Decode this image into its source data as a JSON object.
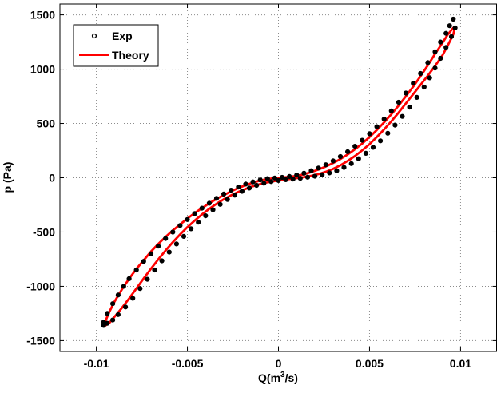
{
  "chart_data": {
    "type": "scatter",
    "xlabel_base": "Q(m",
    "xlabel_sup": "3",
    "xlabel_tail": "/s)",
    "ylabel": "p (Pa)",
    "xlim": [
      -0.012,
      0.012
    ],
    "ylim": [
      -1600,
      1600
    ],
    "grid": true,
    "legend_position": "top-left",
    "x_ticks": [
      -0.01,
      -0.005,
      0,
      0.005,
      0.01
    ],
    "x_tick_labels": [
      "-0.01",
      "-0.005",
      "0",
      "0.005",
      "0.01"
    ],
    "y_ticks": [
      -1500,
      -1000,
      -500,
      0,
      500,
      1000,
      1500
    ],
    "y_tick_labels": [
      "-1500",
      "-1000",
      "-500",
      "0",
      "500",
      "1000",
      "1500"
    ],
    "colors": {
      "exp": "#000000",
      "theory": "#ff0000",
      "grid": "#8c8c8c"
    },
    "series": [
      {
        "name": "Exp",
        "style": "markers",
        "upper_branch": {
          "x": [
            -0.0096,
            -0.0094,
            -0.0091,
            -0.0088,
            -0.0085,
            -0.0082,
            -0.0078,
            -0.0074,
            -0.007,
            -0.0066,
            -0.0062,
            -0.0058,
            -0.0054,
            -0.005,
            -0.0046,
            -0.0042,
            -0.0038,
            -0.0034,
            -0.003,
            -0.0026,
            -0.0022,
            -0.0018,
            -0.0014,
            -0.001,
            -0.0006,
            -0.0002,
            0.0002,
            0.0006,
            0.001,
            0.0014,
            0.0018,
            0.0022,
            0.0026,
            0.003,
            0.0034,
            0.0038,
            0.0042,
            0.0046,
            0.005,
            0.0054,
            0.0058,
            0.0062,
            0.0066,
            0.007,
            0.0074,
            0.0078,
            0.0082,
            0.0086,
            0.0089,
            0.0092,
            0.0094,
            0.0096
          ],
          "y": [
            -1330,
            -1250,
            -1160,
            -1080,
            -1000,
            -930,
            -850,
            -770,
            -700,
            -630,
            -560,
            -500,
            -440,
            -385,
            -330,
            -280,
            -235,
            -190,
            -150,
            -115,
            -85,
            -58,
            -38,
            -20,
            -8,
            -2,
            4,
            12,
            25,
            42,
            65,
            90,
            120,
            155,
            195,
            240,
            290,
            345,
            405,
            470,
            540,
            615,
            695,
            780,
            870,
            960,
            1060,
            1160,
            1250,
            1330,
            1400,
            1460
          ]
        },
        "lower_branch": {
          "x": [
            0.0097,
            0.0095,
            0.0092,
            0.0089,
            0.0086,
            0.0083,
            0.008,
            0.0076,
            0.0072,
            0.0068,
            0.0064,
            0.006,
            0.0056,
            0.0052,
            0.0048,
            0.0044,
            0.004,
            0.0036,
            0.0032,
            0.0028,
            0.0024,
            0.002,
            0.0016,
            0.0012,
            0.0008,
            0.0004,
            0.0,
            -0.0004,
            -0.0008,
            -0.0012,
            -0.0016,
            -0.002,
            -0.0024,
            -0.0028,
            -0.0032,
            -0.0036,
            -0.004,
            -0.0044,
            -0.0048,
            -0.0052,
            -0.0056,
            -0.006,
            -0.0064,
            -0.0068,
            -0.0072,
            -0.0076,
            -0.008,
            -0.0084,
            -0.0088,
            -0.0091,
            -0.0094,
            -0.0096
          ],
          "y": [
            1380,
            1300,
            1200,
            1100,
            1010,
            920,
            835,
            740,
            650,
            565,
            485,
            410,
            340,
            280,
            225,
            175,
            130,
            95,
            65,
            45,
            28,
            15,
            5,
            -5,
            -12,
            -18,
            -25,
            -35,
            -50,
            -70,
            -95,
            -125,
            -160,
            -200,
            -245,
            -295,
            -350,
            -410,
            -470,
            -540,
            -610,
            -685,
            -765,
            -850,
            -935,
            -1020,
            -1110,
            -1190,
            -1260,
            -1310,
            -1340,
            -1360
          ]
        }
      },
      {
        "name": "Theory",
        "style": "line",
        "x": [
          -0.0095,
          -0.0093,
          -0.009,
          -0.0086,
          -0.0082,
          -0.0078,
          -0.0074,
          -0.007,
          -0.0066,
          -0.0062,
          -0.0058,
          -0.0054,
          -0.005,
          -0.0046,
          -0.0042,
          -0.0038,
          -0.0034,
          -0.003,
          -0.0026,
          -0.0022,
          -0.0018,
          -0.0014,
          -0.001,
          -0.0006,
          -0.0002,
          0.0002,
          0.0006,
          0.001,
          0.0014,
          0.0018,
          0.0022,
          0.0026,
          0.003,
          0.0034,
          0.0038,
          0.0042,
          0.0046,
          0.005,
          0.0054,
          0.0058,
          0.0062,
          0.0066,
          0.007,
          0.0074,
          0.0078,
          0.0082,
          0.0086,
          0.009,
          0.0093,
          0.0096,
          0.0097,
          0.0096,
          0.0093,
          0.009,
          0.0086,
          0.0082,
          0.0078,
          0.0074,
          0.007,
          0.0066,
          0.0062,
          0.0058,
          0.0054,
          0.005,
          0.0046,
          0.0042,
          0.0038,
          0.0034,
          0.003,
          0.0026,
          0.0022,
          0.0018,
          0.0014,
          0.001,
          0.0006,
          0.0002,
          -0.0002,
          -0.0006,
          -0.001,
          -0.0014,
          -0.0018,
          -0.0022,
          -0.0026,
          -0.003,
          -0.0034,
          -0.0038,
          -0.0042,
          -0.0046,
          -0.005,
          -0.0054,
          -0.0058,
          -0.0062,
          -0.0066,
          -0.007,
          -0.0074,
          -0.0078,
          -0.0082,
          -0.0086,
          -0.009,
          -0.0093,
          -0.0095,
          -0.0095
        ],
        "y": [
          -1320,
          -1240,
          -1140,
          -1030,
          -930,
          -840,
          -760,
          -680,
          -610,
          -545,
          -485,
          -430,
          -375,
          -325,
          -280,
          -235,
          -195,
          -160,
          -125,
          -95,
          -68,
          -45,
          -25,
          -12,
          -4,
          2,
          8,
          18,
          32,
          52,
          76,
          104,
          136,
          172,
          215,
          262,
          315,
          375,
          440,
          510,
          585,
          665,
          750,
          840,
          935,
          1035,
          1140,
          1240,
          1320,
          1380,
          1390,
          1320,
          1220,
          1125,
          1030,
          940,
          855,
          770,
          685,
          600,
          520,
          445,
          375,
          310,
          252,
          200,
          155,
          115,
          82,
          55,
          34,
          18,
          6,
          -4,
          -12,
          -20,
          -30,
          -42,
          -58,
          -78,
          -102,
          -130,
          -162,
          -198,
          -240,
          -286,
          -338,
          -394,
          -455,
          -522,
          -594,
          -670,
          -752,
          -838,
          -928,
          -1020,
          -1112,
          -1200,
          -1280,
          -1340,
          -1360,
          -1320
        ]
      }
    ]
  }
}
